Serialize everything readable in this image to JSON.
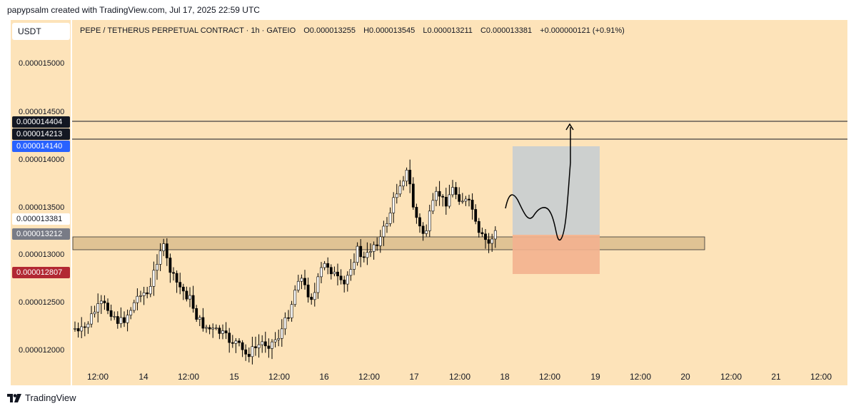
{
  "attribution": "papypsalm created with TradingView.com, Jul 17, 2025 22:59 UTC",
  "currency": "USDT",
  "legend": {
    "symbol": "PEPE / TETHERUS PERPETUAL CONTRACT · 1h · GATEIO",
    "open": "O0.000013255",
    "high": "H0.000013545",
    "low": "L0.000013211",
    "close": "C0.000013381",
    "change": "+0.000000121 (+0.91%)"
  },
  "y_axis": {
    "ticks": [
      "0.000015000",
      "0.000014500",
      "0.000014000",
      "0.000013500",
      "0.000013000",
      "0.000012500",
      "0.000012000"
    ],
    "badges": [
      {
        "text": "0.000014404",
        "bg": "#131722",
        "fg": "#ffffff"
      },
      {
        "text": "0.000014213",
        "bg": "#131722",
        "fg": "#ffffff"
      },
      {
        "text": "0.000014140",
        "bg": "#2962ff",
        "fg": "#ffffff"
      },
      {
        "text": "0.000013381",
        "bg": "#ffffff",
        "fg": "#131722"
      },
      {
        "text": "0.000013212",
        "bg": "#787b86",
        "fg": "#ffffff"
      },
      {
        "text": "0.000012807",
        "bg": "#b22833",
        "fg": "#ffffff"
      }
    ]
  },
  "x_axis": {
    "ticks": [
      "12:00",
      "14",
      "12:00",
      "15",
      "12:00",
      "16",
      "12:00",
      "17",
      "12:00",
      "18",
      "12:00",
      "19",
      "12:00",
      "20",
      "12:00",
      "21",
      "12:00"
    ]
  },
  "colors": {
    "background": "#fde3b9",
    "candle_up": "#ffffff",
    "candle_down": "#000000",
    "profit_zone": "#c8cdd2",
    "loss_zone": "#f3b18f",
    "support_zone": "#e0c394"
  },
  "footer": {
    "brand": "TradingView",
    "logo_icon": "tradingview-logo-icon"
  }
}
